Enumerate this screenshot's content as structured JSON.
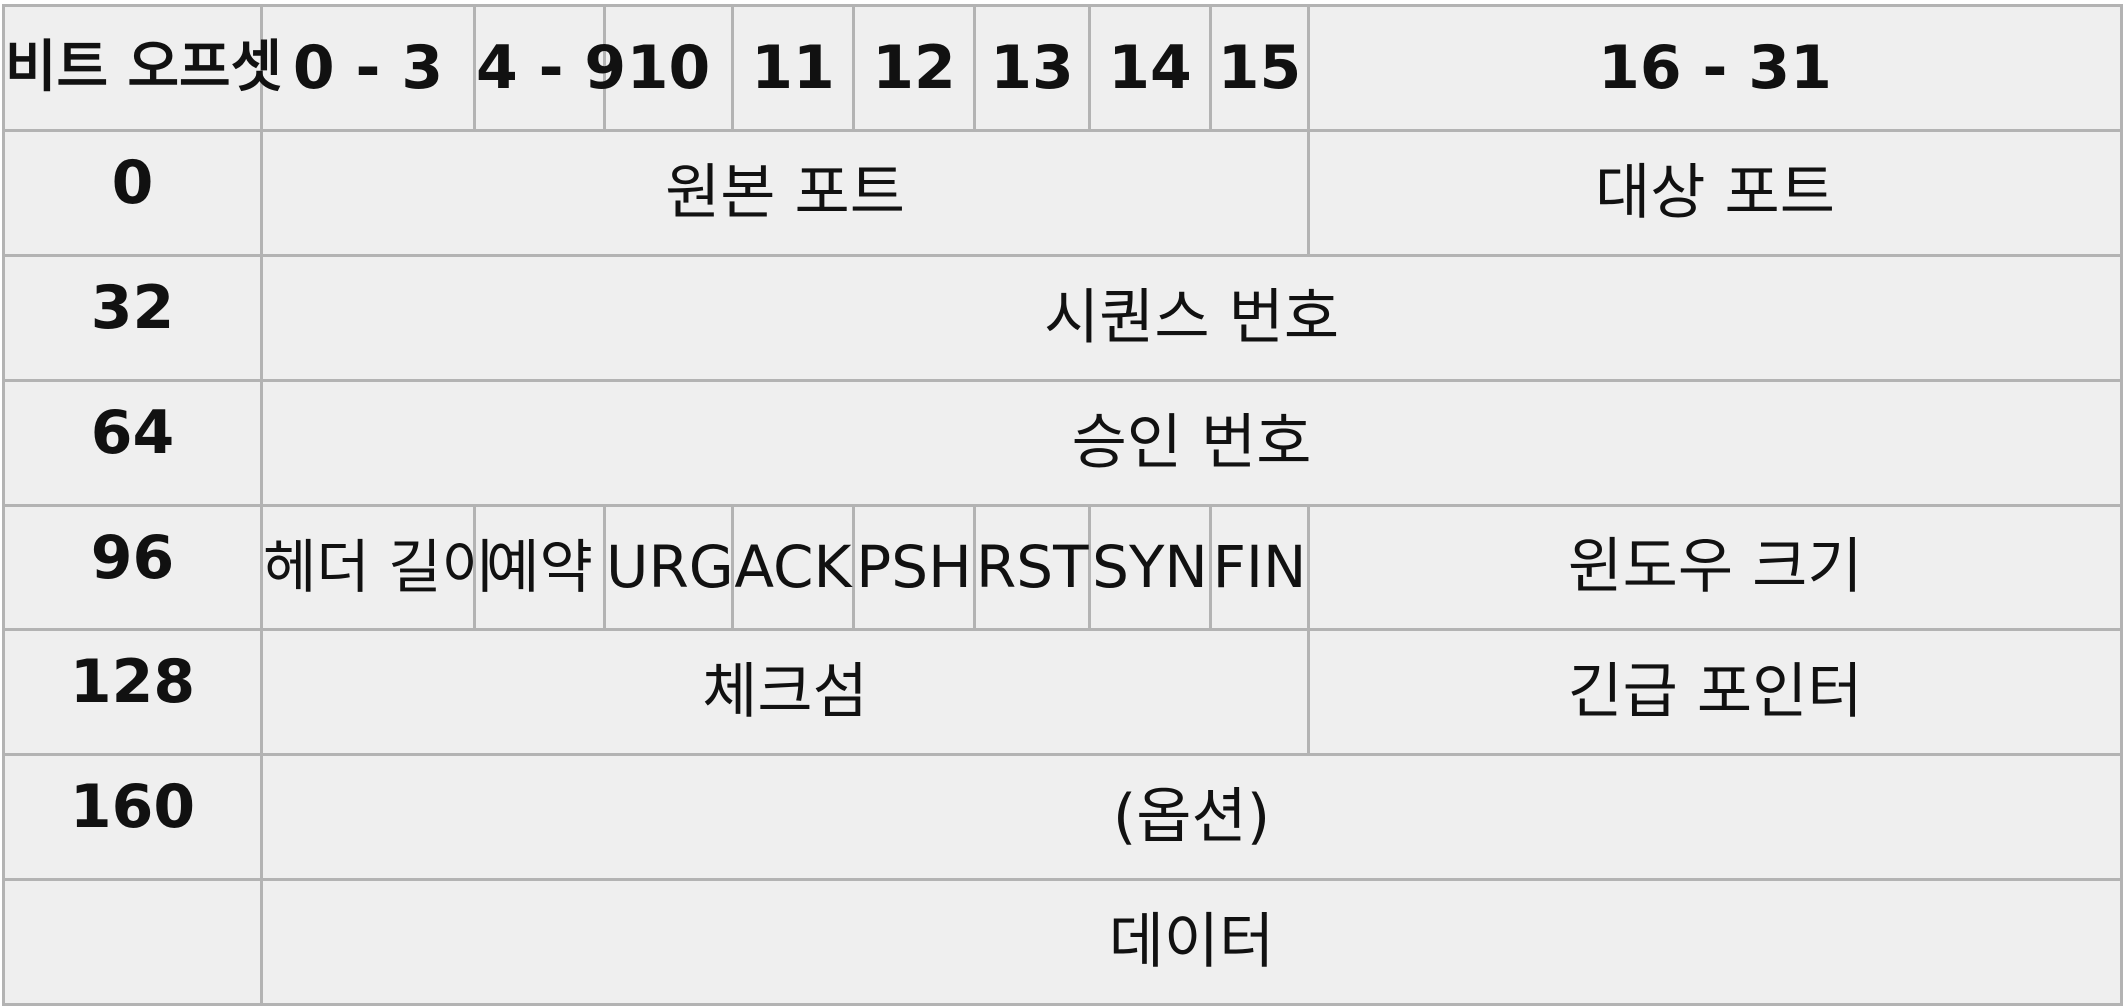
{
  "header": {
    "offset_label": "비트 오프셋",
    "bits": [
      "0 - 3",
      "4 - 9",
      "10",
      "11",
      "12",
      "13",
      "14",
      "15",
      "16 - 31"
    ]
  },
  "rows": {
    "r0": {
      "offset": "0",
      "source_port": "원본 포트",
      "dest_port": "대상 포트"
    },
    "r32": {
      "offset": "32",
      "sequence_number": "시퀀스 번호"
    },
    "r64": {
      "offset": "64",
      "ack_number": "승인 번호"
    },
    "r96": {
      "offset": "96",
      "header_length": "헤더 길이",
      "reserved": "예약",
      "flags": [
        "URG",
        "ACK",
        "PSH",
        "RST",
        "SYN",
        "FIN"
      ],
      "window_size": "윈도우 크기"
    },
    "r128": {
      "offset": "128",
      "checksum": "체크섬",
      "urgent_pointer": "긴급 포인터"
    },
    "r160": {
      "offset": "160",
      "options": "(옵션)"
    },
    "rdata": {
      "offset": "",
      "data": "데이터"
    }
  }
}
